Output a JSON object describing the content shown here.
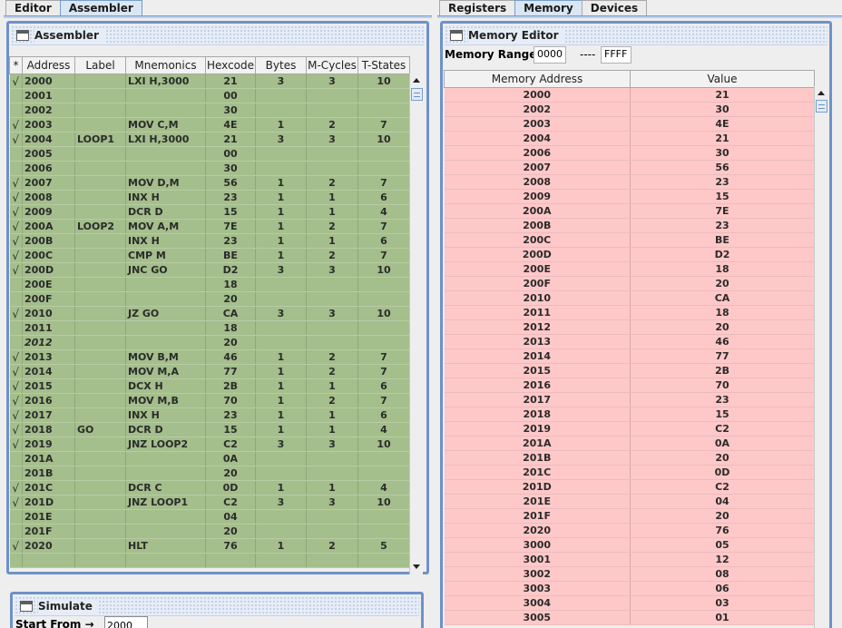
{
  "left_tabs": [
    {
      "label": "Editor",
      "active": false
    },
    {
      "label": "Assembler",
      "active": true
    }
  ],
  "right_tabs": [
    {
      "label": "Registers",
      "active": false
    },
    {
      "label": "Memory",
      "active": true
    },
    {
      "label": "Devices",
      "active": false
    }
  ],
  "assembler": {
    "title": "Assembler",
    "columns": [
      "*",
      "Address",
      "Label",
      "Mnemonics",
      "Hexcode",
      "Bytes",
      "M-Cycles",
      "T-States"
    ],
    "rows": [
      [
        "√",
        "2000",
        "",
        "LXI H,3000",
        "21",
        "3",
        "3",
        "10"
      ],
      [
        "",
        "2001",
        "",
        "",
        "00",
        "",
        "",
        ""
      ],
      [
        "",
        "2002",
        "",
        "",
        "30",
        "",
        "",
        ""
      ],
      [
        "√",
        "2003",
        "",
        "MOV C,M",
        "4E",
        "1",
        "2",
        "7"
      ],
      [
        "√",
        "2004",
        "LOOP1",
        "LXI H,3000",
        "21",
        "3",
        "3",
        "10"
      ],
      [
        "",
        "2005",
        "",
        "",
        "00",
        "",
        "",
        ""
      ],
      [
        "",
        "2006",
        "",
        "",
        "30",
        "",
        "",
        ""
      ],
      [
        "√",
        "2007",
        "",
        "MOV D,M",
        "56",
        "1",
        "2",
        "7"
      ],
      [
        "√",
        "2008",
        "",
        "INX H",
        "23",
        "1",
        "1",
        "6"
      ],
      [
        "√",
        "2009",
        "",
        "DCR D",
        "15",
        "1",
        "1",
        "4"
      ],
      [
        "√",
        "200A",
        "LOOP2",
        "MOV A,M",
        "7E",
        "1",
        "2",
        "7"
      ],
      [
        "√",
        "200B",
        "",
        "INX H",
        "23",
        "1",
        "1",
        "6"
      ],
      [
        "√",
        "200C",
        "",
        "CMP M",
        "BE",
        "1",
        "2",
        "7"
      ],
      [
        "√",
        "200D",
        "",
        "JNC GO",
        "D2",
        "3",
        "3",
        "10"
      ],
      [
        "",
        "200E",
        "",
        "",
        "18",
        "",
        "",
        ""
      ],
      [
        "",
        "200F",
        "",
        "",
        "20",
        "",
        "",
        ""
      ],
      [
        "√",
        "2010",
        "",
        "JZ GO",
        "CA",
        "3",
        "3",
        "10"
      ],
      [
        "",
        "2011",
        "",
        "",
        "18",
        "",
        "",
        ""
      ],
      [
        "",
        "2012",
        "",
        "",
        "20",
        "",
        "",
        ""
      ],
      [
        "√",
        "2013",
        "",
        "MOV B,M",
        "46",
        "1",
        "2",
        "7"
      ],
      [
        "√",
        "2014",
        "",
        "MOV M,A",
        "77",
        "1",
        "2",
        "7"
      ],
      [
        "√",
        "2015",
        "",
        "DCX H",
        "2B",
        "1",
        "1",
        "6"
      ],
      [
        "√",
        "2016",
        "",
        "MOV M,B",
        "70",
        "1",
        "2",
        "7"
      ],
      [
        "√",
        "2017",
        "",
        "INX H",
        "23",
        "1",
        "1",
        "6"
      ],
      [
        "√",
        "2018",
        "GO",
        "DCR D",
        "15",
        "1",
        "1",
        "4"
      ],
      [
        "√",
        "2019",
        "",
        "JNZ LOOP2",
        "C2",
        "3",
        "3",
        "10"
      ],
      [
        "",
        "201A",
        "",
        "",
        "0A",
        "",
        "",
        ""
      ],
      [
        "",
        "201B",
        "",
        "",
        "20",
        "",
        "",
        ""
      ],
      [
        "√",
        "201C",
        "",
        "DCR C",
        "0D",
        "1",
        "1",
        "4"
      ],
      [
        "√",
        "201D",
        "",
        "JNZ LOOP1",
        "C2",
        "3",
        "3",
        "10"
      ],
      [
        "",
        "201E",
        "",
        "",
        "04",
        "",
        "",
        ""
      ],
      [
        "",
        "201F",
        "",
        "",
        "20",
        "",
        "",
        ""
      ],
      [
        "√",
        "2020",
        "",
        "HLT",
        "76",
        "1",
        "2",
        "5"
      ],
      [
        "",
        "",
        "",
        "",
        "",
        "",
        "",
        ""
      ]
    ]
  },
  "simulate": {
    "title": "Simulate",
    "start_from_label": "Start From →",
    "start_from_value": "2000"
  },
  "memory_editor": {
    "title": "Memory Editor",
    "range_label": "Memory Range:",
    "range_start": "0000",
    "range_separator": "----",
    "range_end": "FFFF",
    "columns": [
      "Memory Address",
      "Value"
    ],
    "rows": [
      [
        "2000",
        "21"
      ],
      [
        "2002",
        "30"
      ],
      [
        "2003",
        "4E"
      ],
      [
        "2004",
        "21"
      ],
      [
        "2006",
        "30"
      ],
      [
        "2007",
        "56"
      ],
      [
        "2008",
        "23"
      ],
      [
        "2009",
        "15"
      ],
      [
        "200A",
        "7E"
      ],
      [
        "200B",
        "23"
      ],
      [
        "200C",
        "BE"
      ],
      [
        "200D",
        "D2"
      ],
      [
        "200E",
        "18"
      ],
      [
        "200F",
        "20"
      ],
      [
        "2010",
        "CA"
      ],
      [
        "2011",
        "18"
      ],
      [
        "2012",
        "20"
      ],
      [
        "2013",
        "46"
      ],
      [
        "2014",
        "77"
      ],
      [
        "2015",
        "2B"
      ],
      [
        "2016",
        "70"
      ],
      [
        "2017",
        "23"
      ],
      [
        "2018",
        "15"
      ],
      [
        "2019",
        "C2"
      ],
      [
        "201A",
        "0A"
      ],
      [
        "201B",
        "20"
      ],
      [
        "201C",
        "0D"
      ],
      [
        "201D",
        "C2"
      ],
      [
        "201E",
        "04"
      ],
      [
        "201F",
        "20"
      ],
      [
        "2020",
        "76"
      ],
      [
        "3000",
        "05"
      ],
      [
        "3001",
        "12"
      ],
      [
        "3002",
        "08"
      ],
      [
        "3003",
        "06"
      ],
      [
        "3004",
        "03"
      ],
      [
        "3005",
        "01"
      ]
    ]
  },
  "colors": {
    "assembler_row": "#a4be8c",
    "memory_row": "#ffc8c8",
    "frame_border": "#6e92c9"
  }
}
